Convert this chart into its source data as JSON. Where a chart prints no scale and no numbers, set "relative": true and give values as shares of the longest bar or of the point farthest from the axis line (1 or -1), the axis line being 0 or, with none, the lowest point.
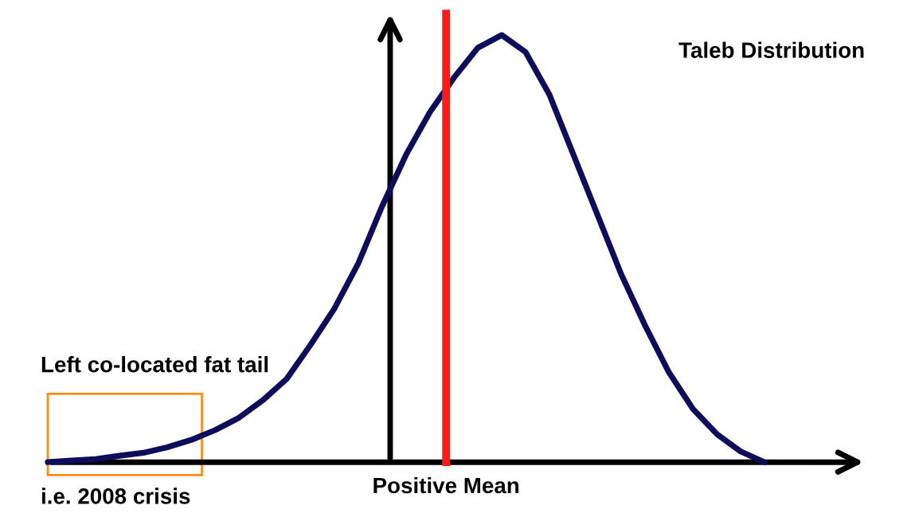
{
  "chart_data": {
    "type": "line",
    "relative": true,
    "title": "Taleb Distribution",
    "categories": [
      null,
      null,
      null,
      null,
      null,
      null,
      null,
      null,
      null,
      null,
      null,
      null,
      null,
      null,
      null,
      null,
      null,
      null,
      null,
      null,
      null,
      null,
      null,
      null,
      null,
      null,
      null,
      null,
      null,
      null,
      null
    ],
    "series": [
      {
        "color": "#0d0d5c",
        "values": [
          0,
          0.004,
          0.007,
          0.015,
          0.022,
          0.035,
          0.052,
          0.075,
          0.104,
          0.145,
          0.195,
          0.275,
          0.36,
          0.466,
          0.6,
          0.72,
          0.82,
          0.9,
          0.97,
          1.0,
          0.96,
          0.86,
          0.72,
          0.58,
          0.44,
          0.32,
          0.21,
          0.125,
          0.066,
          0.025,
          0
        ]
      }
    ],
    "annotations": [
      "Left co-located fat tail",
      "i.e. 2008 crisis",
      "Positive Mean"
    ],
    "grid": false,
    "legend": false,
    "marker": "none",
    "line_style": "solid"
  }
}
